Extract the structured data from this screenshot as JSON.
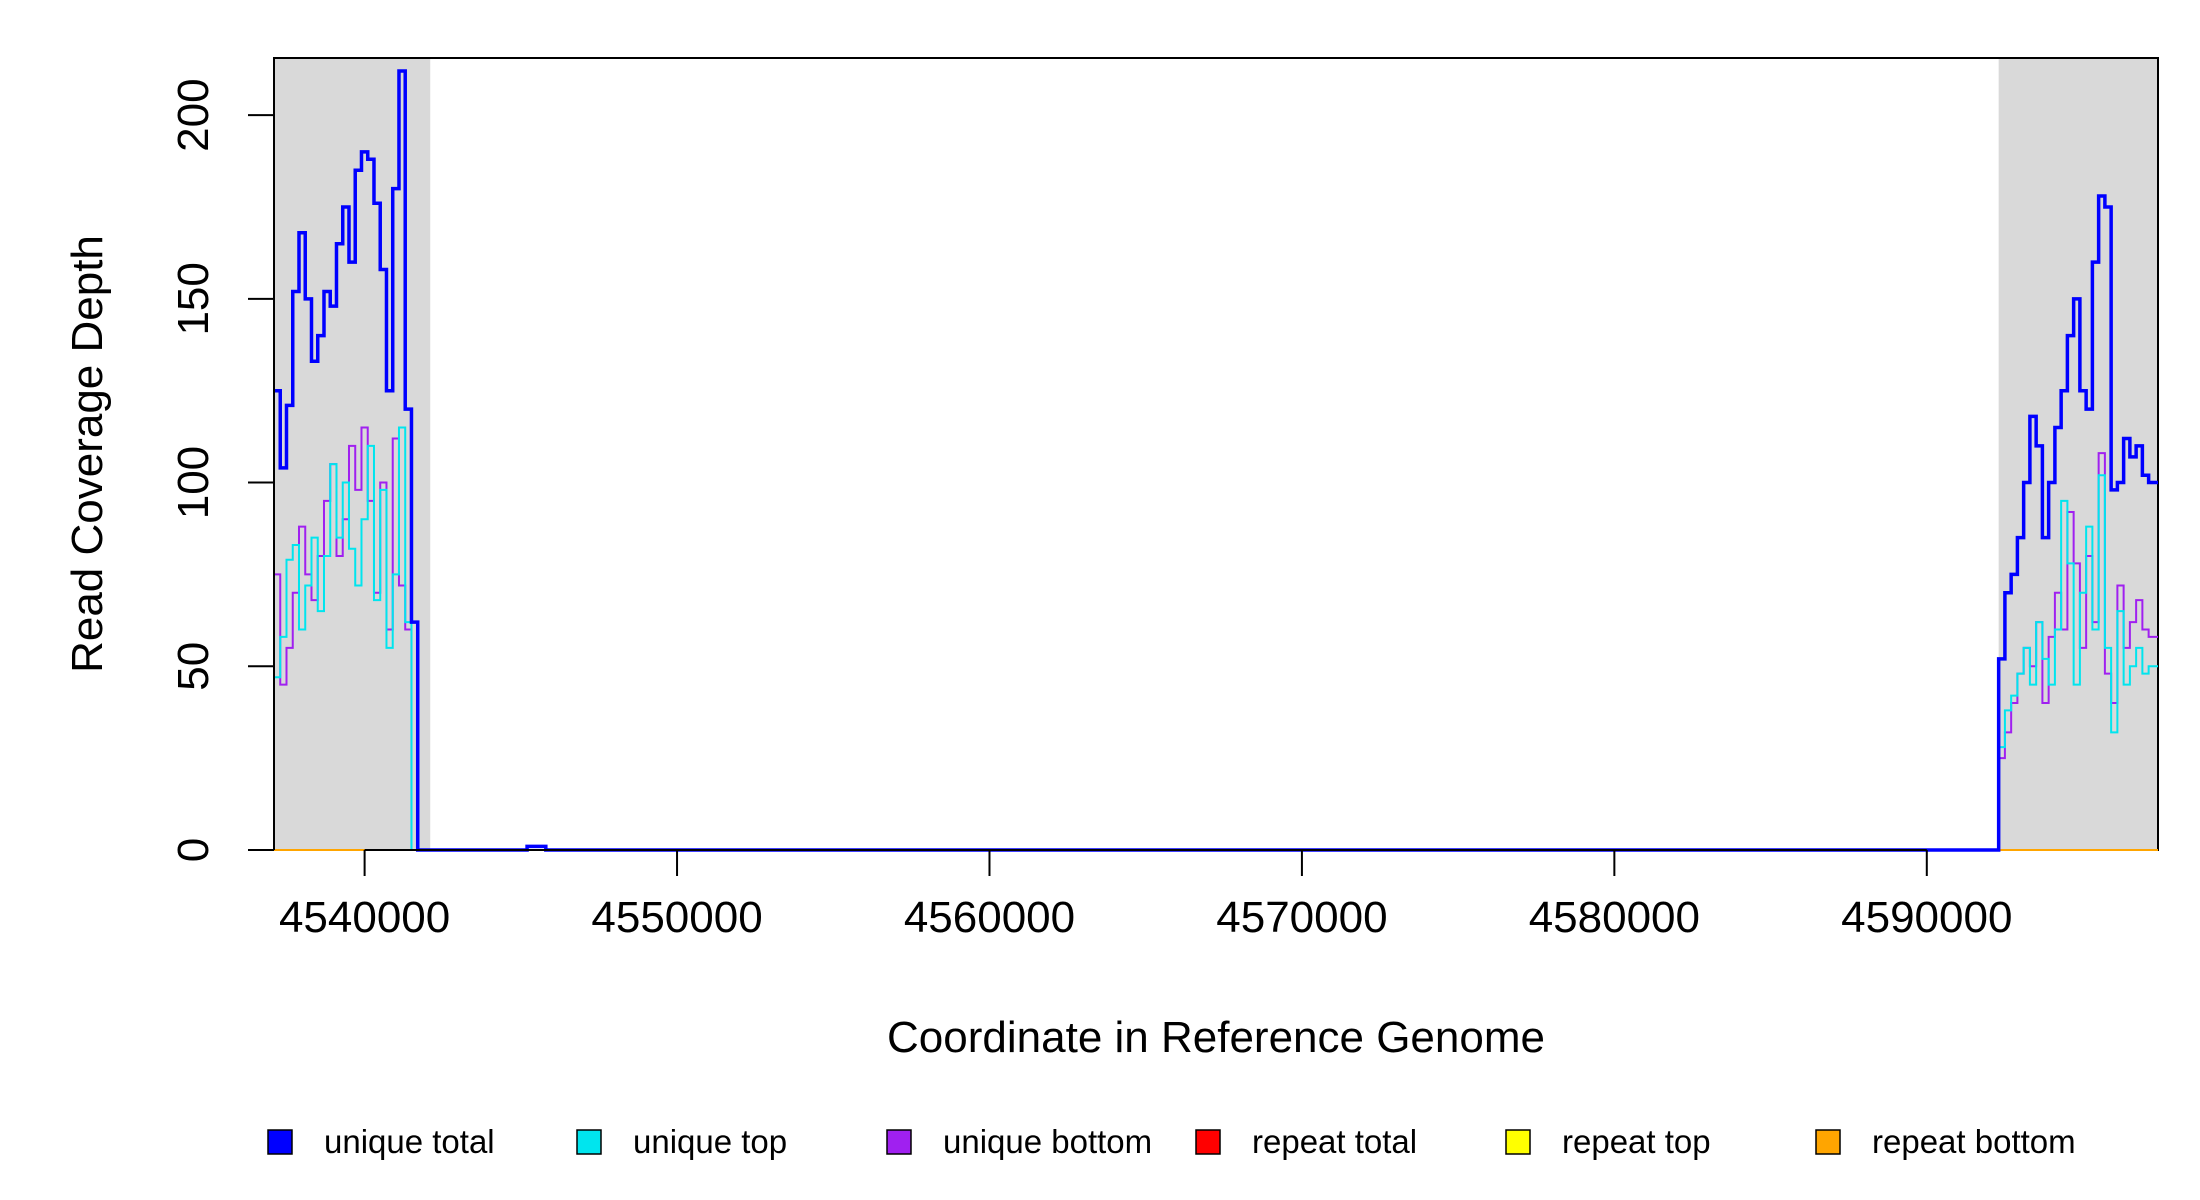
{
  "chart_data": {
    "type": "line",
    "xlabel": "Coordinate in Reference Genome",
    "ylabel": "Read Coverage Depth",
    "xlim": [
      4537100,
      4597400
    ],
    "ylim": [
      0,
      215
    ],
    "xticks": [
      4540000,
      4550000,
      4560000,
      4570000,
      4580000,
      4590000
    ],
    "xtick_labels": [
      "4540000",
      "4550000",
      "4560000",
      "4570000",
      "4580000",
      "4590000"
    ],
    "yticks": [
      0,
      50,
      100,
      150,
      200
    ],
    "ytick_labels": [
      "0",
      "50",
      "100",
      "150",
      "200"
    ],
    "shaded_regions": [
      [
        4537100,
        4542100
      ],
      [
        4592300,
        4597400
      ]
    ],
    "shade_color": "#d9d9d9",
    "legend_position": "bottom",
    "series": [
      {
        "name": "unique total",
        "color": "#0000ff",
        "step": true,
        "x": [
          4537100,
          4537300,
          4537500,
          4537700,
          4537900,
          4538100,
          4538300,
          4538500,
          4538700,
          4538900,
          4539100,
          4539300,
          4539500,
          4539700,
          4539900,
          4540100,
          4540300,
          4540500,
          4540700,
          4540900,
          4541100,
          4541300,
          4541500,
          4541700,
          4541900,
          4542100,
          4542200,
          4542300,
          4545000,
          4545200,
          4545500,
          4545800,
          4546000,
          4546200,
          4592200,
          4592300,
          4592500,
          4592700,
          4592900,
          4593100,
          4593300,
          4593500,
          4593700,
          4593900,
          4594100,
          4594300,
          4594500,
          4594700,
          4594900,
          4595100,
          4595300,
          4595500,
          4595700,
          4595900,
          4596100,
          4596300,
          4596500,
          4596700,
          4596900,
          4597100,
          4597400
        ],
        "y": [
          125,
          104,
          121,
          152,
          168,
          150,
          133,
          140,
          152,
          148,
          165,
          175,
          160,
          185,
          190,
          188,
          176,
          158,
          125,
          180,
          212,
          120,
          62,
          0,
          0,
          0,
          0,
          0,
          0,
          1,
          1,
          0,
          0,
          0,
          0,
          52,
          70,
          75,
          85,
          100,
          118,
          110,
          85,
          100,
          115,
          125,
          140,
          150,
          125,
          120,
          160,
          178,
          175,
          98,
          100,
          112,
          107,
          110,
          102,
          100,
          100
        ]
      },
      {
        "name": "unique top",
        "color": "#00e5ee",
        "step": true,
        "x": [
          4537100,
          4537300,
          4537500,
          4537700,
          4537900,
          4538100,
          4538300,
          4538500,
          4538700,
          4538900,
          4539100,
          4539300,
          4539500,
          4539700,
          4539900,
          4540100,
          4540300,
          4540500,
          4540700,
          4540900,
          4541100,
          4541300,
          4541500,
          4541700,
          4541900,
          4542100,
          4542200,
          4542300,
          4592200,
          4592300,
          4592500,
          4592700,
          4592900,
          4593100,
          4593300,
          4593500,
          4593700,
          4593900,
          4594100,
          4594300,
          4594500,
          4594700,
          4594900,
          4595100,
          4595300,
          4595500,
          4595700,
          4595900,
          4596100,
          4596300,
          4596500,
          4596700,
          4596900,
          4597100,
          4597400
        ],
        "y": [
          47,
          58,
          79,
          83,
          60,
          72,
          85,
          65,
          80,
          105,
          85,
          100,
          82,
          72,
          90,
          110,
          68,
          98,
          55,
          75,
          115,
          62,
          0,
          0,
          0,
          0,
          0,
          0,
          0,
          28,
          38,
          42,
          48,
          55,
          45,
          62,
          52,
          45,
          60,
          95,
          78,
          45,
          70,
          88,
          60,
          102,
          55,
          32,
          65,
          45,
          50,
          55,
          48,
          50,
          50
        ]
      },
      {
        "name": "unique bottom",
        "color": "#a020f0",
        "step": true,
        "x": [
          4537100,
          4537300,
          4537500,
          4537700,
          4537900,
          4538100,
          4538300,
          4538500,
          4538700,
          4538900,
          4539100,
          4539300,
          4539500,
          4539700,
          4539900,
          4540100,
          4540300,
          4540500,
          4540700,
          4540900,
          4541100,
          4541300,
          4541500,
          4541700,
          4541900,
          4542100,
          4542200,
          4542300,
          4592200,
          4592300,
          4592500,
          4592700,
          4592900,
          4593100,
          4593300,
          4593500,
          4593700,
          4593900,
          4594100,
          4594300,
          4594500,
          4594700,
          4594900,
          4595100,
          4595300,
          4595500,
          4595700,
          4595900,
          4596100,
          4596300,
          4596500,
          4596700,
          4596900,
          4597100,
          4597400
        ],
        "y": [
          75,
          45,
          55,
          70,
          88,
          75,
          68,
          80,
          95,
          105,
          80,
          90,
          110,
          98,
          115,
          95,
          70,
          100,
          60,
          112,
          72,
          60,
          0,
          0,
          0,
          0,
          0,
          0,
          0,
          25,
          32,
          40,
          48,
          55,
          50,
          62,
          40,
          58,
          70,
          60,
          92,
          78,
          55,
          80,
          62,
          108,
          48,
          40,
          72,
          55,
          62,
          68,
          60,
          58,
          58
        ]
      },
      {
        "name": "repeat total",
        "color": "#ff0000",
        "step": true,
        "x": [
          4537100,
          4597400
        ],
        "y": [
          0,
          0
        ]
      },
      {
        "name": "repeat top",
        "color": "#ffff00",
        "step": true,
        "x": [
          4537100,
          4597400
        ],
        "y": [
          0,
          0
        ]
      },
      {
        "name": "repeat bottom",
        "color": "#ffa500",
        "step": true,
        "x": [
          4537100,
          4597400
        ],
        "y": [
          0,
          0
        ]
      }
    ]
  }
}
